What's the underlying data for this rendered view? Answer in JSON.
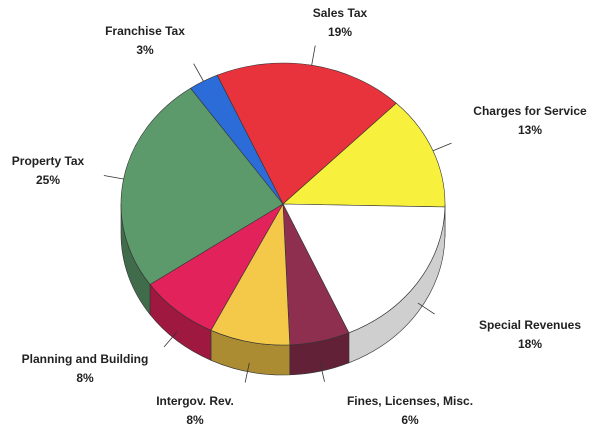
{
  "chart_data": {
    "type": "pie",
    "categories": [
      "Sales Tax",
      "Charges for Service",
      "Special Revenues",
      "Fines, Licenses, Misc.",
      "Intergov. Rev.",
      "Planning and Building",
      "Property Tax",
      "Franchise Tax"
    ],
    "values": [
      19,
      13,
      18,
      6,
      8,
      8,
      25,
      3
    ],
    "value_labels": [
      "19%",
      "13%",
      "18%",
      "6%",
      "8%",
      "8%",
      "25%",
      "3%"
    ],
    "colors": [
      "#e8323c",
      "#f7f03c",
      "#ffffff",
      "#8e2f50",
      "#f4c848",
      "#e2225a",
      "#5c9a6c",
      "#2c6cd8"
    ]
  }
}
